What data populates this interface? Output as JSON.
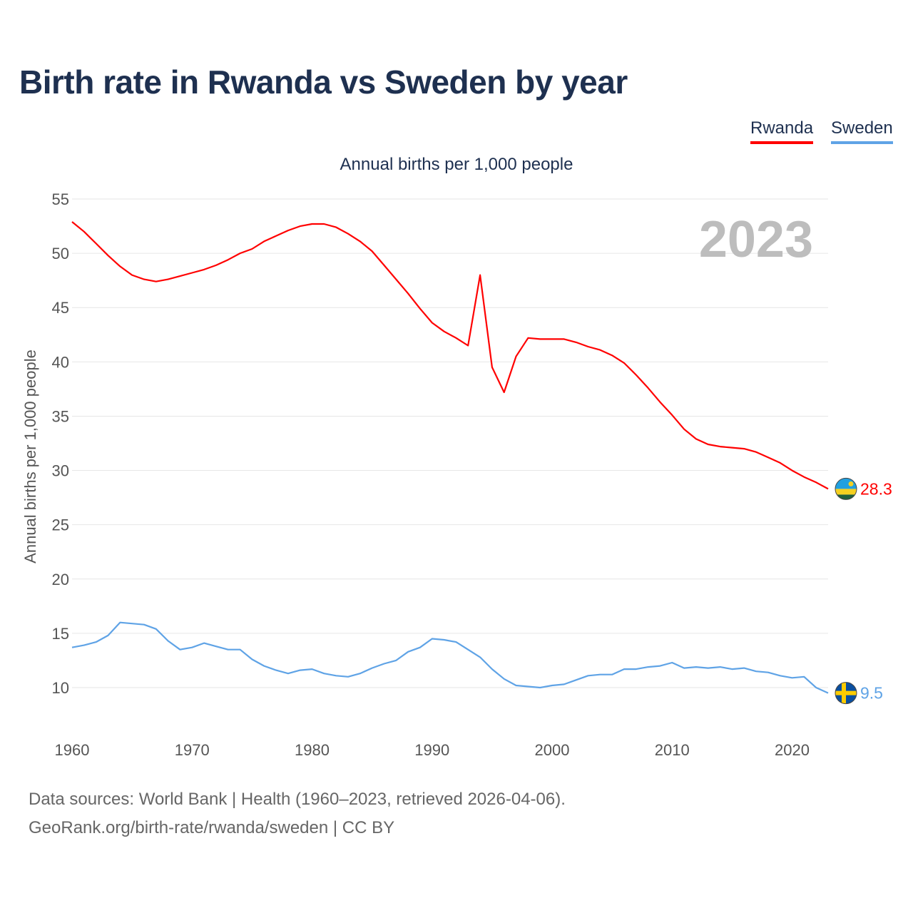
{
  "title": "Birth rate in Rwanda vs Sweden by year",
  "subtitle": "Annual births per 1,000 people",
  "legend": [
    "Rwanda",
    "Sweden"
  ],
  "year_label": "2023",
  "colors": {
    "Rwanda": "#ff0000",
    "Sweden": "#5fa3e6",
    "grid": "#e6e6e6",
    "year": "#bdbdbd"
  },
  "footer": {
    "line1": "Data sources: World Bank | Health (1960–2023, retrieved 2026-04-06).",
    "line2": "GeoRank.org/birth-rate/rwanda/sweden | CC BY"
  },
  "chart_data": {
    "type": "line",
    "title": "Birth rate in Rwanda vs Sweden by year",
    "xlabel": "",
    "ylabel": "Annual births per 1,000 people",
    "xlim": [
      1960,
      2023
    ],
    "ylim": [
      10,
      55
    ],
    "x_ticks": [
      "1960",
      "1970",
      "1980",
      "1990",
      "2000",
      "2010",
      "2020"
    ],
    "y_ticks": [
      "10",
      "15",
      "20",
      "25",
      "30",
      "35",
      "40",
      "45",
      "50",
      "55"
    ],
    "x": [
      1960,
      1961,
      1962,
      1963,
      1964,
      1965,
      1966,
      1967,
      1968,
      1969,
      1970,
      1971,
      1972,
      1973,
      1974,
      1975,
      1976,
      1977,
      1978,
      1979,
      1980,
      1981,
      1982,
      1983,
      1984,
      1985,
      1986,
      1987,
      1988,
      1989,
      1990,
      1991,
      1992,
      1993,
      1994,
      1995,
      1996,
      1997,
      1998,
      1999,
      2000,
      2001,
      2002,
      2003,
      2004,
      2005,
      2006,
      2007,
      2008,
      2009,
      2010,
      2011,
      2012,
      2013,
      2014,
      2015,
      2016,
      2017,
      2018,
      2019,
      2020,
      2021,
      2022,
      2023
    ],
    "series": [
      {
        "name": "Rwanda",
        "end_label": "28.3",
        "values": [
          52.9,
          52.0,
          50.9,
          49.8,
          48.8,
          48.0,
          47.6,
          47.4,
          47.6,
          47.9,
          48.2,
          48.5,
          48.9,
          49.4,
          50.0,
          50.4,
          51.1,
          51.6,
          52.1,
          52.5,
          52.7,
          52.7,
          52.4,
          51.8,
          51.1,
          50.2,
          48.9,
          47.6,
          46.3,
          44.9,
          43.6,
          42.8,
          42.2,
          41.5,
          48.0,
          39.5,
          37.2,
          40.5,
          42.2,
          42.1,
          42.1,
          42.1,
          41.8,
          41.4,
          41.1,
          40.6,
          39.9,
          38.8,
          37.6,
          36.3,
          35.1,
          33.8,
          32.9,
          32.4,
          32.2,
          32.1,
          32.0,
          31.7,
          31.2,
          30.7,
          30.0,
          29.4,
          28.9,
          28.3
        ]
      },
      {
        "name": "Sweden",
        "end_label": "9.5",
        "values": [
          13.7,
          13.9,
          14.2,
          14.8,
          16.0,
          15.9,
          15.8,
          15.4,
          14.3,
          13.5,
          13.7,
          14.1,
          13.8,
          13.5,
          13.5,
          12.6,
          12.0,
          11.6,
          11.3,
          11.6,
          11.7,
          11.3,
          11.1,
          11.0,
          11.3,
          11.8,
          12.2,
          12.5,
          13.3,
          13.7,
          14.5,
          14.4,
          14.2,
          13.5,
          12.8,
          11.7,
          10.8,
          10.2,
          10.1,
          10.0,
          10.2,
          10.3,
          10.7,
          11.1,
          11.2,
          11.2,
          11.7,
          11.7,
          11.9,
          12.0,
          12.3,
          11.8,
          11.9,
          11.8,
          11.9,
          11.7,
          11.8,
          11.5,
          11.4,
          11.1,
          10.9,
          11.0,
          10.0,
          9.5
        ]
      }
    ]
  }
}
